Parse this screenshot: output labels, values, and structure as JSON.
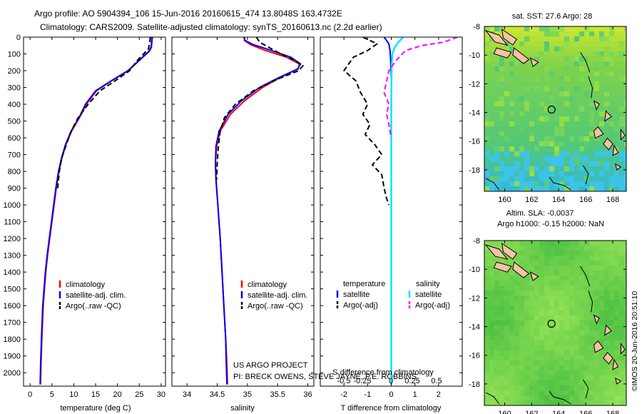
{
  "header": {
    "line1": "Argo profile: AO 5904394_106 15-Jun-2016 20160615_474 13.8048S 163.4732E",
    "line2": "Climatology: CARS2009. Satellite-adjusted climatology: synTS_20160613.nc (2.2d earlier)"
  },
  "colors": {
    "climatology": "#ff0000",
    "satellite": "#0000ff",
    "argo": "#000000",
    "salinity_satellite": "#00e5ff",
    "salinity_argo": "#ff00ff",
    "land": "#f4c2a8"
  },
  "project": {
    "line1": "US ARGO PROJECT",
    "line2": "PI: BRECK OWENS, STEVE JAYNE, P.E. ROBBINS"
  },
  "watermark": "©IMOS 20-Jun-2016 20:51:10",
  "chart_data": [
    {
      "type": "line",
      "id": "temperature",
      "xlabel": "temperature (deg C)",
      "ylabel": "",
      "xlim": [
        -1.5,
        31
      ],
      "ylim": [
        2080,
        0
      ],
      "xticks": [
        0,
        5,
        10,
        15,
        20,
        25,
        30
      ],
      "yticks": [
        0,
        100,
        200,
        300,
        400,
        500,
        600,
        700,
        800,
        900,
        1000,
        1100,
        1200,
        1300,
        1400,
        1500,
        1600,
        1700,
        1800,
        1900,
        2000
      ],
      "legend": {
        "position": "bottom-right",
        "entries": [
          "climatology",
          "satellite-adj. clim.",
          "Argo(..raw -QC)"
        ]
      },
      "series": [
        {
          "name": "climatology",
          "x": [
            28.0,
            27.9,
            27.8,
            27.3,
            25.8,
            22.5,
            18.7,
            15.2,
            12.9,
            11.3,
            9.5,
            8.2,
            7.3,
            6.6,
            6.0,
            5.5,
            5.0,
            4.5,
            4.0,
            3.6,
            3.3,
            3.0,
            2.7,
            2.5,
            2.4
          ],
          "y": [
            0,
            30,
            60,
            85,
            120,
            200,
            260,
            320,
            400,
            480,
            560,
            640,
            720,
            800,
            900,
            1000,
            1100,
            1200,
            1300,
            1400,
            1500,
            1600,
            1800,
            1950,
            2070
          ]
        },
        {
          "name": "satellite-adj. clim.",
          "x": [
            27.9,
            27.8,
            27.7,
            27.2,
            25.7,
            22.4,
            18.6,
            15.0,
            12.7,
            11.2,
            9.4,
            8.1,
            7.2,
            6.5,
            5.9,
            5.4,
            4.9,
            4.4,
            3.9,
            3.5,
            3.2,
            2.9,
            2.6,
            2.4,
            2.3
          ],
          "y": [
            0,
            30,
            60,
            85,
            120,
            200,
            260,
            320,
            400,
            480,
            560,
            640,
            720,
            800,
            900,
            1000,
            1100,
            1200,
            1300,
            1400,
            1500,
            1600,
            1800,
            1950,
            2070
          ]
        },
        {
          "name": "Argo(..raw -QC)",
          "x": [
            27.5,
            27.4,
            27.1,
            26.0,
            24.5,
            22.8,
            19.5,
            16.0,
            13.3,
            11.0,
            9.4,
            8.3,
            7.2,
            6.7,
            6.3
          ],
          "y": [
            0,
            30,
            70,
            100,
            140,
            200,
            260,
            320,
            400,
            480,
            560,
            640,
            720,
            800,
            900
          ]
        }
      ]
    },
    {
      "type": "line",
      "id": "salinity",
      "xlabel": "salinity",
      "ylabel": "",
      "xlim": [
        33.75,
        36.1
      ],
      "ylim": [
        2080,
        0
      ],
      "xticks": [
        34,
        34.5,
        35,
        35.5,
        36
      ],
      "legend": {
        "position": "bottom-right",
        "entries": [
          "climatology",
          "satellite-adj. clim.",
          "Argo(..raw -QC)"
        ]
      },
      "series": [
        {
          "name": "climatology",
          "x": [
            34.95,
            34.95,
            35.05,
            35.3,
            35.65,
            35.86,
            35.84,
            35.55,
            35.25,
            34.95,
            34.72,
            34.55,
            34.49,
            34.47,
            34.48,
            34.51,
            34.55,
            34.58,
            34.61,
            34.64,
            34.66,
            34.67
          ],
          "y": [
            0,
            20,
            45,
            80,
            120,
            160,
            190,
            240,
            300,
            380,
            460,
            560,
            650,
            750,
            850,
            1000,
            1200,
            1400,
            1600,
            1800,
            1950,
            2070
          ]
        },
        {
          "name": "satellite-adj. clim.",
          "x": [
            34.94,
            34.96,
            35.1,
            35.4,
            35.72,
            35.88,
            35.83,
            35.53,
            35.2,
            34.9,
            34.68,
            34.53,
            34.48,
            34.47,
            34.48,
            34.51,
            34.55,
            34.58,
            34.61,
            34.64,
            34.65,
            34.66
          ],
          "y": [
            0,
            20,
            45,
            80,
            120,
            160,
            190,
            240,
            300,
            380,
            460,
            560,
            650,
            750,
            850,
            1000,
            1200,
            1400,
            1600,
            1800,
            1950,
            2070
          ]
        },
        {
          "name": "Argo(..raw -QC)",
          "x": [
            35.15,
            35.2,
            35.35,
            35.55,
            35.78,
            35.92,
            35.85,
            35.5,
            35.1,
            34.8,
            34.62,
            34.55,
            34.52,
            34.5,
            34.49
          ],
          "y": [
            0,
            30,
            60,
            100,
            140,
            170,
            200,
            250,
            320,
            400,
            480,
            560,
            650,
            750,
            850
          ]
        }
      ]
    },
    {
      "type": "line",
      "id": "difference",
      "xlabel": "T difference from climatology",
      "top_axis_label": "S difference from climatology",
      "xlim": [
        -3,
        3
      ],
      "ylim": [
        2080,
        0
      ],
      "xticks": [
        -2,
        -1,
        0,
        1,
        2
      ],
      "top_ticks": [
        "-0.5",
        "-0.25",
        "0",
        "0.25",
        "0.5"
      ],
      "top_tick_values": [
        -0.5,
        -0.25,
        0,
        0.25,
        0.5
      ],
      "legend": {
        "position": "bottom",
        "groups": [
          {
            "title": "temperature",
            "entries": [
              "satellite",
              "Argo(-adj)"
            ]
          },
          {
            "title": "salinity",
            "entries": [
              "satellite",
              "Argo(-adj)"
            ]
          }
        ]
      },
      "series": [
        {
          "name": "satellite",
          "group": "temperature",
          "x": [
            -0.3,
            -0.1,
            -0.05,
            -0.02,
            0.0,
            0.0,
            0.0,
            0.0,
            0.0,
            0.0
          ],
          "y": [
            0,
            40,
            80,
            150,
            250,
            400,
            600,
            1000,
            1500,
            2070
          ]
        },
        {
          "name": "Argo(-adj)",
          "group": "temperature",
          "x": [
            -1.2,
            -0.6,
            -1.0,
            -1.6,
            -2.0,
            -1.5,
            -1.3,
            -1.0,
            -1.2,
            -0.9,
            -1.1,
            -0.7,
            -0.4,
            -0.8,
            -0.4,
            -0.3,
            -0.2,
            -0.1
          ],
          "y": [
            0,
            40,
            80,
            120,
            200,
            260,
            330,
            400,
            460,
            520,
            580,
            640,
            700,
            760,
            820,
            900,
            960,
            1000
          ]
        },
        {
          "name": "satellite",
          "group": "salinity",
          "x": [
            0.5,
            0.3,
            0.15,
            0.05,
            0.02,
            0.01,
            0.0,
            0.0,
            0.0,
            0.0
          ],
          "y": [
            0,
            30,
            60,
            100,
            160,
            250,
            400,
            800,
            1400,
            2070
          ]
        },
        {
          "name": "Argo(-adj)",
          "group": "salinity",
          "x": [
            2.8,
            2.2,
            1.3,
            0.6,
            0.2,
            -0.1,
            -0.3,
            -0.1,
            -0.2,
            -0.1,
            -0.05,
            0.0
          ],
          "y": [
            0,
            30,
            50,
            80,
            140,
            200,
            330,
            400,
            460,
            520,
            560,
            600
          ]
        }
      ]
    },
    {
      "type": "heatmap",
      "id": "sst_map",
      "title": "sat. SST: 27.6 Argo: 28",
      "xlim": [
        158.5,
        169
      ],
      "ylim": [
        -19.5,
        -8
      ],
      "xticks": [
        160,
        162,
        164,
        166,
        168
      ],
      "yticks": [
        -8,
        -10,
        -12,
        -14,
        -16,
        -18
      ],
      "marker": {
        "lon": 163.47,
        "lat": -13.8
      }
    },
    {
      "type": "heatmap",
      "id": "sla_map",
      "title": "Altim. SLA: -0.0037",
      "title2": "Argo h1000: -0.15 h2000: NaN",
      "xlim": [
        158.5,
        169
      ],
      "ylim": [
        -19.5,
        -8
      ],
      "xticks": [
        160,
        162,
        164,
        166,
        168
      ],
      "yticks": [
        -8,
        -10,
        -12,
        -14,
        -16,
        -18
      ],
      "marker": {
        "lon": 163.47,
        "lat": -13.8
      }
    }
  ]
}
